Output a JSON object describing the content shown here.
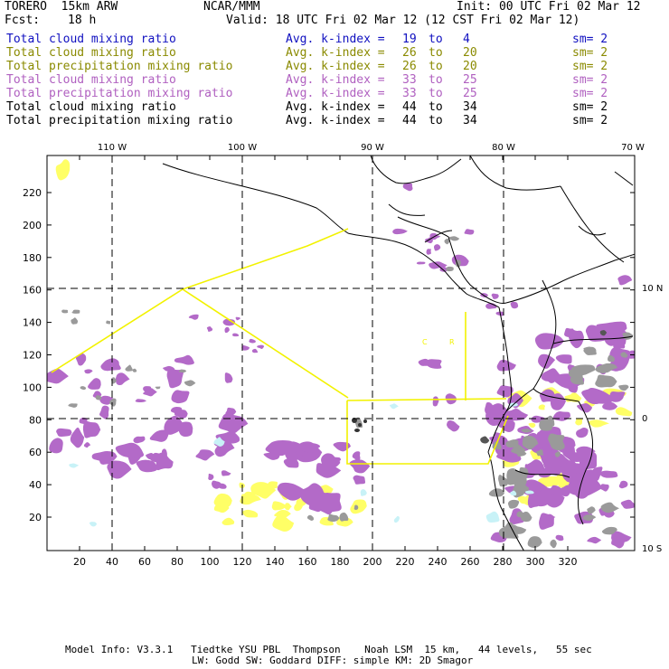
{
  "header": {
    "model": "TORERO  15km ARW",
    "org": "NCAR/MMM",
    "init": "Init: 00 UTC Fri 02 Mar 12",
    "fcst_label": "Fcst:",
    "fcst_value": "18 h",
    "valid": "Valid: 18 UTC Fri 02 Mar 12 (12 CST Fri 02 Mar 12)"
  },
  "legend": [
    {
      "field": "Total cloud mixing ratio",
      "stat": "Avg. k-index =",
      "v1": "19",
      "to": "to",
      "v2": "4",
      "sm": "sm= 2",
      "color": "#1010c0"
    },
    {
      "field": "Total cloud mixing ratio",
      "stat": "Avg. k-index =",
      "v1": "26",
      "to": "to",
      "v2": "20",
      "sm": "sm= 2",
      "color": "#8a8a00"
    },
    {
      "field": "Total precipitation mixing ratio",
      "stat": "Avg. k-index =",
      "v1": "26",
      "to": "to",
      "v2": "20",
      "sm": "sm= 2",
      "color": "#8a8a00"
    },
    {
      "field": "Total cloud mixing ratio",
      "stat": "Avg. k-index =",
      "v1": "33",
      "to": "to",
      "v2": "25",
      "sm": "sm= 2",
      "color": "#b060c0"
    },
    {
      "field": "Total precipitation mixing ratio",
      "stat": "Avg. k-index =",
      "v1": "33",
      "to": "to",
      "v2": "25",
      "sm": "sm= 2",
      "color": "#b060c0"
    },
    {
      "field": "Total cloud mixing ratio",
      "stat": "Avg. k-index =",
      "v1": "44",
      "to": "to",
      "v2": "34",
      "sm": "sm= 2",
      "color": "#000000"
    },
    {
      "field": "Total precipitation mixing ratio",
      "stat": "Avg. k-index =",
      "v1": "44",
      "to": "to",
      "v2": "34",
      "sm": "sm= 2",
      "color": "#000000"
    }
  ],
  "map": {
    "lon_labels": [
      "110 W",
      "100 W",
      "90 W",
      "80 W",
      "70 W"
    ],
    "lat_labels": [
      "10 N",
      "0",
      "10 S"
    ],
    "x_ticks": [
      "20",
      "40",
      "60",
      "80",
      "100",
      "120",
      "140",
      "160",
      "180",
      "200",
      "220",
      "240",
      "260",
      "280",
      "300",
      "320"
    ],
    "y_ticks": [
      "20",
      "40",
      "60",
      "80",
      "100",
      "120",
      "140",
      "160",
      "180",
      "200",
      "220"
    ],
    "region_letters": [
      "C",
      "R"
    ],
    "colors": {
      "purple": "#b36ac8",
      "gray": "#9a9a9a",
      "dark_gray": "#555555",
      "yellow": "#ffff66",
      "cyan": "#c8f2f7",
      "flight_track": "#f2f200",
      "coast": "#000000"
    }
  },
  "footer": {
    "line1": "Model Info: V3.3.1   Tiedtke YSU PBL  Thompson    Noah LSM  15 km,   44 levels,   55 sec",
    "line2": "LW: Godd SW: Goddard DIFF: simple KM: 2D Smagor"
  }
}
